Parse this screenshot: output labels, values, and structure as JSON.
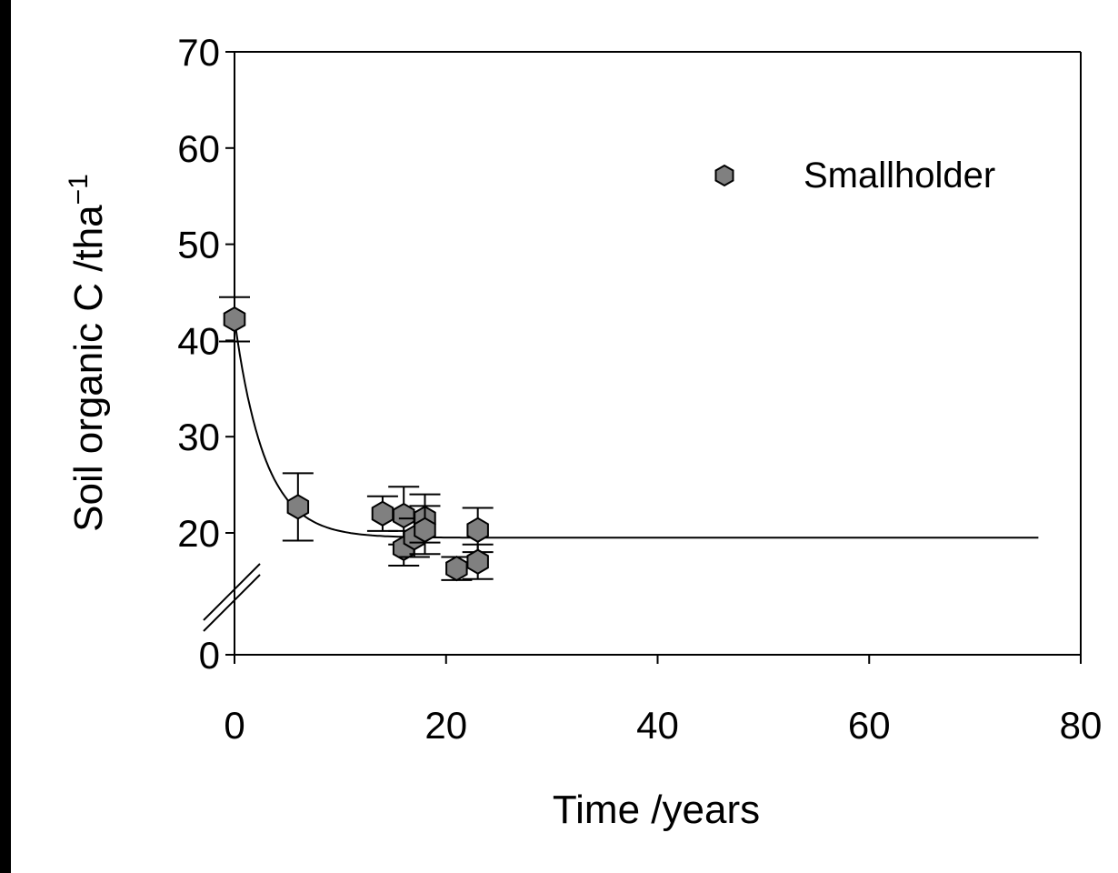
{
  "chart_data": {
    "type": "scatter",
    "xlabel": "Time /years",
    "ylabel": "Soil organic C /tha",
    "ylabel_superscript": "−1",
    "xlim": [
      0,
      80
    ],
    "ylim": [
      0,
      70
    ],
    "y_axis_break": true,
    "x_ticks": [
      "0",
      "20",
      "40",
      "60",
      "80"
    ],
    "y_ticks": [
      "0",
      "20",
      "30",
      "40",
      "50",
      "60",
      "70"
    ],
    "legend": {
      "position": "top-right",
      "label": "Smallholder"
    },
    "series": [
      {
        "name": "Smallholder",
        "marker": "hexagon",
        "color": "#808080",
        "points": [
          {
            "x": 0,
            "y": 42.2,
            "err": 2.3
          },
          {
            "x": 6,
            "y": 22.7,
            "err": 3.5
          },
          {
            "x": 14,
            "y": 22.0,
            "err": 1.8
          },
          {
            "x": 16,
            "y": 21.8,
            "err": 3.0
          },
          {
            "x": 16,
            "y": 18.4,
            "err": 1.8
          },
          {
            "x": 17,
            "y": 19.5,
            "err": 2.0
          },
          {
            "x": 18,
            "y": 21.5,
            "err": 2.5
          },
          {
            "x": 18,
            "y": 20.3,
            "err": 2.5
          },
          {
            "x": 21,
            "y": 16.3,
            "err": 1.2
          },
          {
            "x": 23,
            "y": 20.3,
            "err": 2.3
          },
          {
            "x": 23,
            "y": 17.0,
            "err": 1.8
          }
        ]
      }
    ],
    "fit_curve": {
      "type": "exponential-decay",
      "start": 42.2,
      "asymptote": 19.5,
      "rate": 0.35,
      "x_range": [
        0,
        76
      ]
    }
  }
}
